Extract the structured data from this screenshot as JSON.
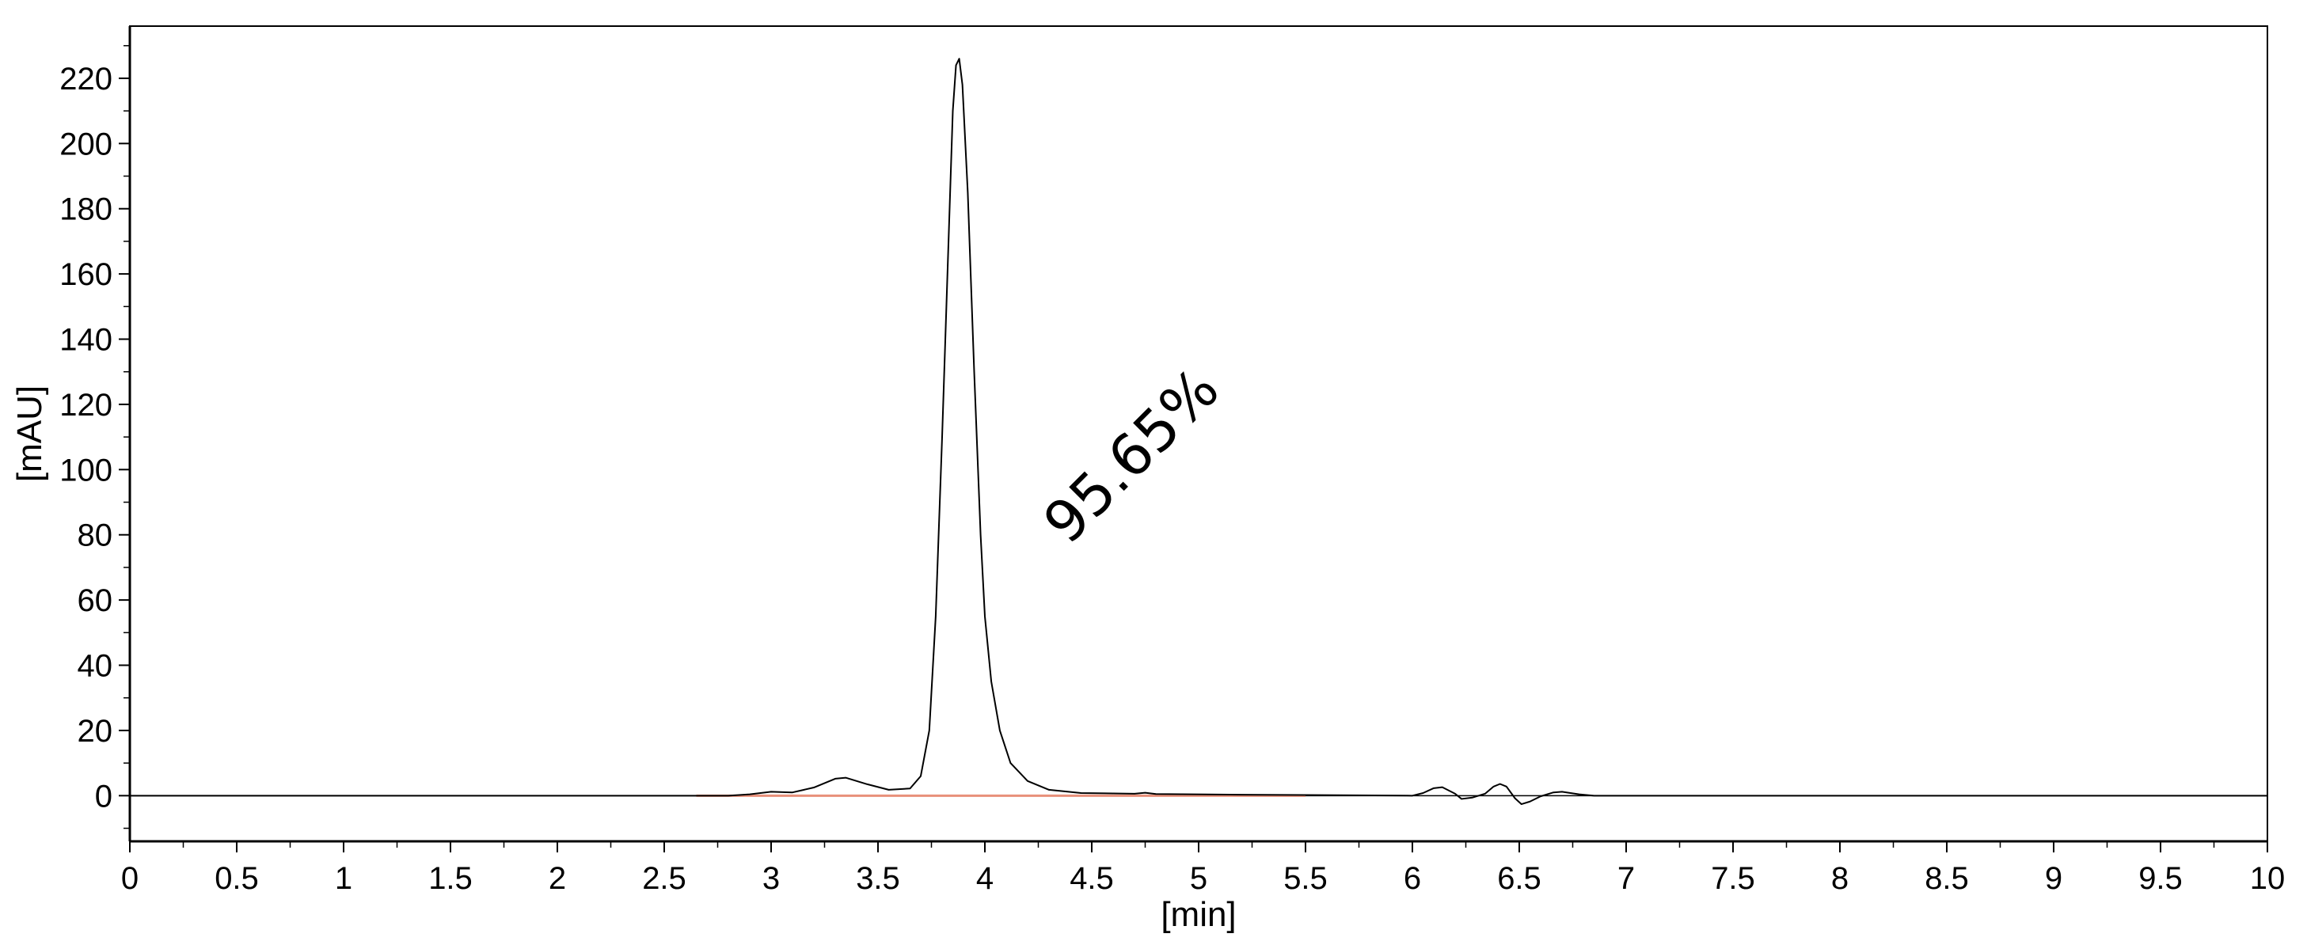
{
  "chart_data": {
    "type": "line",
    "xlabel": "[min]",
    "ylabel": "[mAU]",
    "xlim": [
      0,
      10
    ],
    "ylim": [
      -14,
      236
    ],
    "x_ticks": [
      "0",
      "0.5",
      "1",
      "1.5",
      "2",
      "2.5",
      "3",
      "3.5",
      "4",
      "4.5",
      "5",
      "5.5",
      "6",
      "6.5",
      "7",
      "7.5",
      "8",
      "8.5",
      "9",
      "9.5",
      "10"
    ],
    "y_ticks": [
      "0",
      "20",
      "40",
      "60",
      "80",
      "100",
      "120",
      "140",
      "160",
      "180",
      "200",
      "220"
    ],
    "grid": false,
    "legend": "none",
    "annotations": [
      {
        "text": "95.65%",
        "x": 4.75,
        "y": 100,
        "rotation_deg": -45
      }
    ],
    "series": [
      {
        "color": "#000000",
        "points": [
          [
            0,
            0
          ],
          [
            2.8,
            0
          ],
          [
            2.9,
            0.4
          ],
          [
            3.0,
            1.2
          ],
          [
            3.1,
            1.0
          ],
          [
            3.2,
            2.5
          ],
          [
            3.3,
            5.2
          ],
          [
            3.35,
            5.5
          ],
          [
            3.45,
            3.5
          ],
          [
            3.55,
            1.8
          ],
          [
            3.65,
            2.2
          ],
          [
            3.7,
            6
          ],
          [
            3.74,
            20
          ],
          [
            3.77,
            55
          ],
          [
            3.8,
            110
          ],
          [
            3.83,
            170
          ],
          [
            3.85,
            210
          ],
          [
            3.865,
            224
          ],
          [
            3.88,
            226
          ],
          [
            3.895,
            218
          ],
          [
            3.92,
            185
          ],
          [
            3.95,
            130
          ],
          [
            3.98,
            80
          ],
          [
            4.0,
            55
          ],
          [
            4.03,
            35
          ],
          [
            4.07,
            20
          ],
          [
            4.12,
            10
          ],
          [
            4.2,
            4.5
          ],
          [
            4.3,
            1.8
          ],
          [
            4.45,
            0.8
          ],
          [
            4.7,
            0.6
          ],
          [
            4.75,
            0.9
          ],
          [
            4.8,
            0.5
          ],
          [
            5.2,
            0.3
          ],
          [
            5.5,
            0.2
          ],
          [
            6.0,
            0
          ],
          [
            6.05,
            0.8
          ],
          [
            6.1,
            2.3
          ],
          [
            6.14,
            2.6
          ],
          [
            6.2,
            0.6
          ],
          [
            6.23,
            -1.0
          ],
          [
            6.28,
            -0.6
          ],
          [
            6.34,
            0.6
          ],
          [
            6.38,
            2.8
          ],
          [
            6.41,
            3.6
          ],
          [
            6.44,
            2.8
          ],
          [
            6.48,
            -0.8
          ],
          [
            6.51,
            -2.6
          ],
          [
            6.55,
            -1.8
          ],
          [
            6.6,
            -0.2
          ],
          [
            6.66,
            1.0
          ],
          [
            6.7,
            1.2
          ],
          [
            6.78,
            0.4
          ],
          [
            6.85,
            0
          ],
          [
            10,
            0
          ]
        ]
      },
      {
        "color": "#e8907a",
        "points": [
          [
            2.65,
            0
          ],
          [
            5.5,
            0
          ]
        ]
      }
    ]
  }
}
